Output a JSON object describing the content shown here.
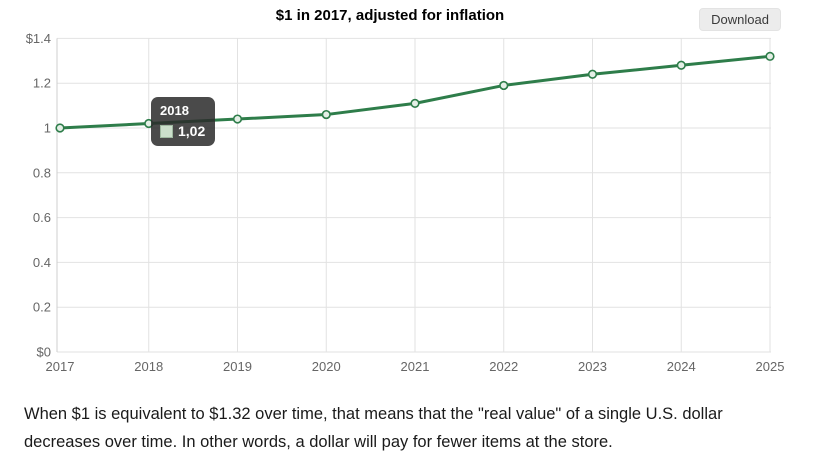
{
  "header": {
    "title": "$1 in 2017, adjusted for inflation",
    "download_label": "Download"
  },
  "chart_data": {
    "type": "line",
    "title": "$1 in 2017, adjusted for inflation",
    "categories": [
      "2017",
      "2018",
      "2019",
      "2020",
      "2021",
      "2022",
      "2023",
      "2024",
      "2025"
    ],
    "values": [
      1.0,
      1.02,
      1.04,
      1.06,
      1.11,
      1.19,
      1.24,
      1.28,
      1.32
    ],
    "ylim": [
      0,
      1.4
    ],
    "yticks": [
      {
        "value": 0,
        "label": "$0"
      },
      {
        "value": 0.2,
        "label": "0.2"
      },
      {
        "value": 0.4,
        "label": "0.4"
      },
      {
        "value": 0.6,
        "label": "0.6"
      },
      {
        "value": 0.8,
        "label": "0.8"
      },
      {
        "value": 1,
        "label": "1"
      },
      {
        "value": 1.2,
        "label": "1.2"
      },
      {
        "value": 1.4,
        "label": "$1.4"
      }
    ],
    "grid": true,
    "legend": "none",
    "line_color": "#2e7d4a",
    "marker_fill": "#e4efe6",
    "grid_color": "#e2e2e2",
    "axis_line_color": "#cfcfcf",
    "axis_label_color": "#666666"
  },
  "tooltip": {
    "header": "2018",
    "value": "1,02",
    "swatch_color": "#cbdfcb"
  },
  "footer": {
    "text": "When $1 is equivalent to $1.32 over time, that means that the \"real value\" of a single U.S. dollar decreases over time. In other words, a dollar will pay for fewer items at the store."
  }
}
